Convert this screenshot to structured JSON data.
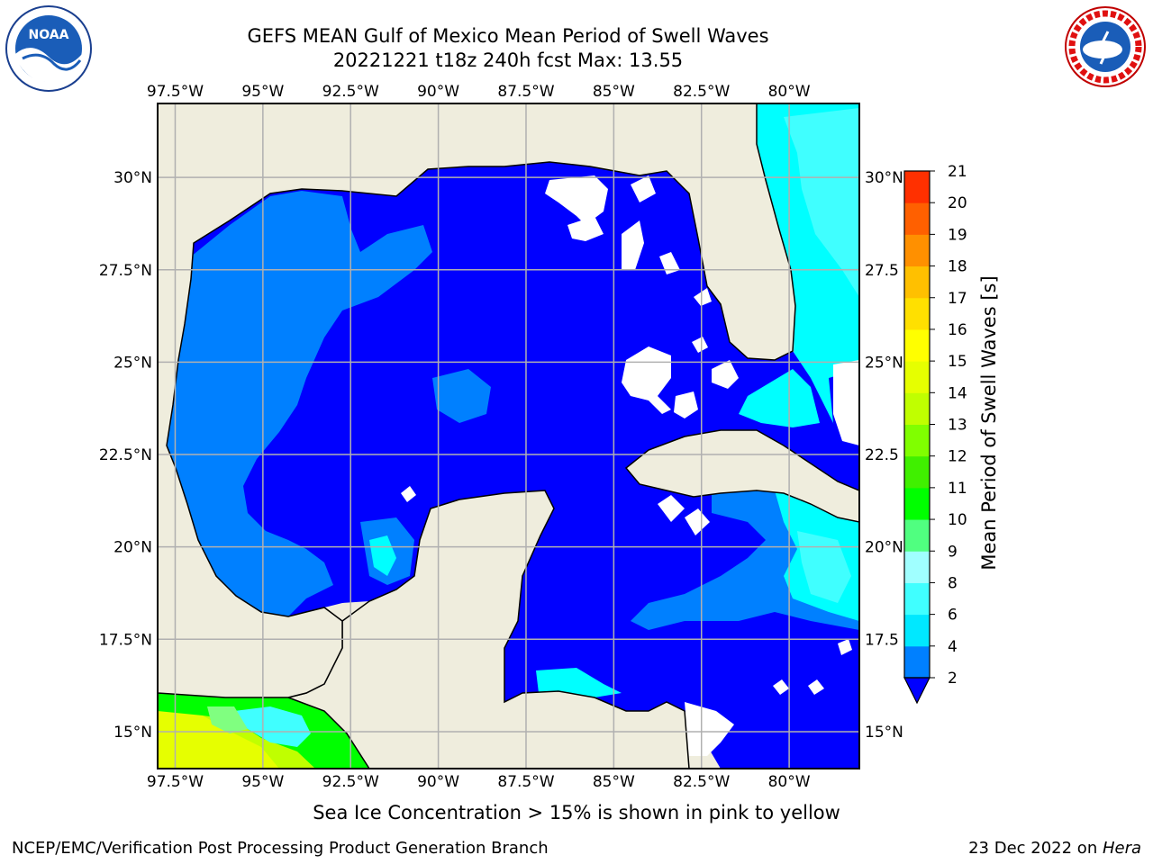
{
  "title": {
    "line1": "GEFS MEAN Gulf of Mexico Mean Period of Swell Waves",
    "line2": "20221221 t18z 240h fcst   Max: 13.55"
  },
  "logos": {
    "left": {
      "name": "noaa-logo",
      "text": "NOAA"
    },
    "right": {
      "name": "nws-logo",
      "text": "NATIONAL WEATHER SERVICE"
    }
  },
  "map": {
    "lon_range": [
      -98.0,
      -78.0
    ],
    "lat_range": [
      14.0,
      32.0
    ],
    "grid": true,
    "lon_ticks": [
      {
        "value": -97.5,
        "label": "97.5°W"
      },
      {
        "value": -95.0,
        "label": "95°W"
      },
      {
        "value": -92.5,
        "label": "92.5°W"
      },
      {
        "value": -90.0,
        "label": "90°W"
      },
      {
        "value": -87.5,
        "label": "87.5°W"
      },
      {
        "value": -85.0,
        "label": "85°W"
      },
      {
        "value": -82.5,
        "label": "82.5°W"
      },
      {
        "value": -80.0,
        "label": "80°W"
      }
    ],
    "lat_ticks_left": [
      {
        "value": 30.0,
        "label": "30°N"
      },
      {
        "value": 27.5,
        "label": "27.5°N"
      },
      {
        "value": 25.0,
        "label": "25°N"
      },
      {
        "value": 22.5,
        "label": "22.5°N"
      },
      {
        "value": 20.0,
        "label": "20°N"
      },
      {
        "value": 17.5,
        "label": "17.5°N"
      },
      {
        "value": 15.0,
        "label": "15°N"
      }
    ],
    "lat_ticks_right": [
      {
        "value": 30.0,
        "label": "30°N"
      },
      {
        "value": 27.5,
        "label": "27.5"
      },
      {
        "value": 25.0,
        "label": "25°N"
      },
      {
        "value": 22.5,
        "label": "22.5"
      },
      {
        "value": 20.0,
        "label": "20°N"
      },
      {
        "value": 17.5,
        "label": "17.5"
      },
      {
        "value": 15.0,
        "label": "15°N"
      }
    ],
    "colors": {
      "land": "#efeddd",
      "sea_2_4": "#0000ff",
      "sea_4_6": "#0080ff",
      "sea_6_8": "#00ffff",
      "sea_8_9": "#40ffff",
      "ice_low": "#00ff00",
      "ice_mid": "#c0ff00",
      "ice_high": "#e6ff00",
      "grid": "#b0b0b0"
    }
  },
  "colorbar": {
    "label": "Mean Period of Swell Waves [s]",
    "levels": [
      2,
      4,
      6,
      8,
      9,
      10,
      11,
      12,
      13,
      14,
      15,
      16,
      17,
      18,
      19,
      20,
      21
    ],
    "tick_labels": [
      "2",
      "4",
      "6",
      "8",
      "9",
      "10",
      "11",
      "12",
      "13",
      "14",
      "15",
      "16",
      "17",
      "18",
      "19",
      "20",
      "21"
    ],
    "colors": [
      "#0080ff",
      "#00e8ff",
      "#40ffff",
      "#a0ffff",
      "#50ff80",
      "#00ff00",
      "#40f000",
      "#80ff00",
      "#c0ff00",
      "#e6ff00",
      "#ffff00",
      "#ffe000",
      "#ffc000",
      "#ff9000",
      "#ff6000",
      "#ff3000"
    ],
    "extend_color": "#0000ff"
  },
  "caption": "Sea Ice Concentration > 15% is shown in pink to yellow",
  "footer": {
    "left": "NCEP/EMC/Verification Post Processing Product Generation Branch",
    "right_date": "23 Dec 2022 on ",
    "right_machine": "Hera"
  }
}
